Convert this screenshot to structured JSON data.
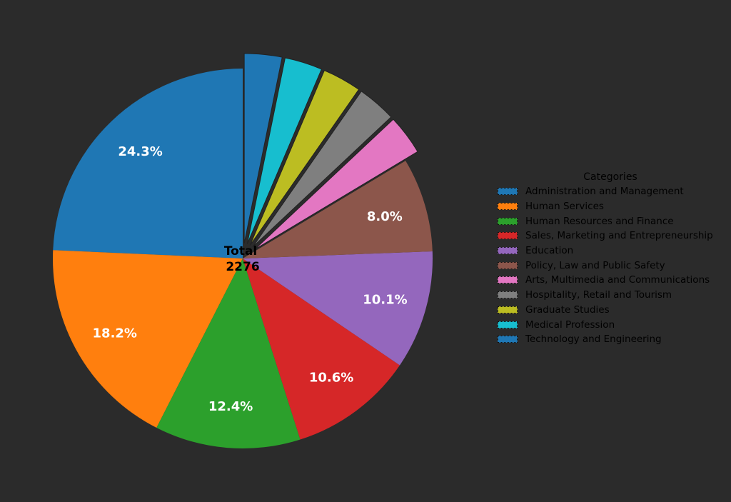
{
  "chart_data": {
    "type": "pie",
    "title": "",
    "center_label": {
      "line1": "Total",
      "line2": "2276"
    },
    "total": 2276,
    "start_angle_deg": 90,
    "direction": "counterclockwise",
    "legend": {
      "title": "Categories",
      "position": "right"
    },
    "categories": [
      "Administration and Management",
      "Human Services",
      "Human Resources and Finance",
      "Sales, Marketing and Entrepreneurship",
      "Education",
      "Policy, Law and Public Safety",
      "Arts, Multimedia and Communications",
      "Hospitality, Retail and Tourism",
      "Graduate Studies",
      "Medical Profession",
      "Technology and Engineering"
    ],
    "percentages": [
      24.3,
      18.2,
      12.4,
      10.6,
      10.1,
      8.0,
      3.4,
      3.3,
      3.3,
      3.2,
      3.2
    ],
    "values": [
      553,
      414,
      282,
      241,
      230,
      182,
      77,
      75,
      75,
      74,
      73
    ],
    "shown_labels": [
      "24.3%",
      "18.2%",
      "12.4%",
      "10.6%",
      "10.1%",
      "8.0%",
      "",
      "",
      "",
      "",
      ""
    ],
    "exploded": [
      false,
      false,
      false,
      false,
      false,
      false,
      true,
      true,
      true,
      true,
      true
    ],
    "colors": [
      "#1f77b4",
      "#ff7f0e",
      "#2ca02c",
      "#d62728",
      "#9467bd",
      "#8c564b",
      "#e377c2",
      "#7f7f7f",
      "#bcbd22",
      "#17becf",
      "#1f77b4"
    ]
  },
  "legend": {
    "title": "Categories",
    "items": [
      {
        "label": "Administration and Management",
        "color": "#1f77b4"
      },
      {
        "label": "Human Services",
        "color": "#ff7f0e"
      },
      {
        "label": "Human Resources and Finance",
        "color": "#2ca02c"
      },
      {
        "label": "Sales, Marketing and Entrepreneurship",
        "color": "#d62728"
      },
      {
        "label": "Education",
        "color": "#9467bd"
      },
      {
        "label": "Policy, Law and Public Safety",
        "color": "#8c564b"
      },
      {
        "label": "Arts, Multimedia and Communications",
        "color": "#e377c2"
      },
      {
        "label": "Hospitality, Retail and Tourism",
        "color": "#7f7f7f"
      },
      {
        "label": "Graduate Studies",
        "color": "#bcbd22"
      },
      {
        "label": "Medical Profession",
        "color": "#17becf"
      },
      {
        "label": "Technology and Engineering",
        "color": "#1f77b4"
      }
    ]
  },
  "colors": {
    "background": "#2b2b2b",
    "label_text": "#ffffff",
    "center_text": "#000000"
  }
}
